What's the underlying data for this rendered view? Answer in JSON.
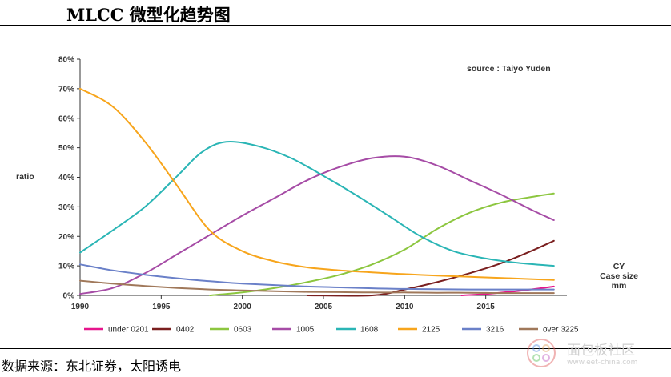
{
  "page": {
    "title": "MLCC 微型化趋势图",
    "source_note": "数据来源：东北证券，太阳诱电",
    "watermark": "面包板社区",
    "watermark_sub": "www.eet-china.com"
  },
  "chart_data": {
    "type": "line",
    "title": "",
    "annotation": "source : Taiyo Yuden",
    "ylabel": "ratio",
    "xlabel_lines": [
      "CY",
      "Case size",
      "mm"
    ],
    "ylim": [
      0,
      80
    ],
    "xlim": [
      1990,
      2020
    ],
    "y_ticks": [
      "0%",
      "10%",
      "20%",
      "30%",
      "40%",
      "50%",
      "60%",
      "70%",
      "80%"
    ],
    "x_ticks": [
      "1990",
      "1995",
      "2000",
      "2005",
      "2010",
      "2015"
    ],
    "grid": false,
    "legend_position": "bottom",
    "series": [
      {
        "name": "under 0201",
        "color": "#e6158c",
        "points": [
          [
            2013.5,
            0
          ],
          [
            2015,
            0.5
          ],
          [
            2017,
            1.5
          ],
          [
            2019.2,
            3
          ]
        ]
      },
      {
        "name": "0402",
        "color": "#7a1f1f",
        "points": [
          [
            2004,
            0
          ],
          [
            2008,
            0
          ],
          [
            2010,
            2
          ],
          [
            2012,
            4.5
          ],
          [
            2014,
            7.5
          ],
          [
            2016,
            11
          ],
          [
            2018,
            15.5
          ],
          [
            2019.2,
            18.5
          ]
        ]
      },
      {
        "name": "0603",
        "color": "#8cc63f",
        "points": [
          [
            1998,
            0
          ],
          [
            2000,
            1
          ],
          [
            2002,
            2.5
          ],
          [
            2004,
            4.5
          ],
          [
            2006,
            7
          ],
          [
            2008,
            10.5
          ],
          [
            2010,
            15.5
          ],
          [
            2012,
            22.5
          ],
          [
            2014,
            28
          ],
          [
            2016,
            31.5
          ],
          [
            2018,
            33.5
          ],
          [
            2019.2,
            34.5
          ]
        ]
      },
      {
        "name": "1005",
        "color": "#a64ca6",
        "points": [
          [
            1990,
            0.5
          ],
          [
            1992,
            2.5
          ],
          [
            1994,
            7.5
          ],
          [
            1996,
            14
          ],
          [
            1998,
            20.5
          ],
          [
            2000,
            27
          ],
          [
            2002,
            33
          ],
          [
            2004,
            39
          ],
          [
            2006,
            43.5
          ],
          [
            2008,
            46.5
          ],
          [
            2010,
            47
          ],
          [
            2012,
            44
          ],
          [
            2014,
            39
          ],
          [
            2016,
            34
          ],
          [
            2018,
            28.5
          ],
          [
            2019.2,
            25.5
          ]
        ]
      },
      {
        "name": "1608",
        "color": "#2ab5b5",
        "points": [
          [
            1990,
            14.5
          ],
          [
            1992,
            22
          ],
          [
            1994,
            30
          ],
          [
            1996,
            40.5
          ],
          [
            1997.5,
            48.5
          ],
          [
            1999,
            52
          ],
          [
            2001,
            50.5
          ],
          [
            2003,
            46.5
          ],
          [
            2005,
            40.5
          ],
          [
            2007,
            34
          ],
          [
            2009,
            27
          ],
          [
            2011,
            20
          ],
          [
            2013,
            15
          ],
          [
            2015,
            12.5
          ],
          [
            2017,
            11
          ],
          [
            2019.2,
            10
          ]
        ]
      },
      {
        "name": "2125",
        "color": "#f7a51c",
        "points": [
          [
            1990,
            70
          ],
          [
            1992,
            64
          ],
          [
            1994,
            52
          ],
          [
            1996,
            37
          ],
          [
            1998,
            22
          ],
          [
            2000,
            15
          ],
          [
            2002,
            11.5
          ],
          [
            2004,
            9.5
          ],
          [
            2006,
            8.5
          ],
          [
            2008,
            7.8
          ],
          [
            2010,
            7.2
          ],
          [
            2012,
            6.7
          ],
          [
            2014,
            6.3
          ],
          [
            2016,
            5.9
          ],
          [
            2019.2,
            5.2
          ]
        ]
      },
      {
        "name": "3216",
        "color": "#6a80c8",
        "points": [
          [
            1990,
            10.5
          ],
          [
            1992,
            8.5
          ],
          [
            1994,
            7
          ],
          [
            1996,
            5.8
          ],
          [
            1998,
            4.8
          ],
          [
            2000,
            4
          ],
          [
            2002,
            3.5
          ],
          [
            2004,
            3
          ],
          [
            2006,
            2.7
          ],
          [
            2008,
            2.4
          ],
          [
            2010,
            2.2
          ],
          [
            2012,
            2.1
          ],
          [
            2014,
            2
          ],
          [
            2016,
            2
          ],
          [
            2019.2,
            2
          ]
        ]
      },
      {
        "name": "over 3225",
        "color": "#a0785a",
        "points": [
          [
            1990,
            5
          ],
          [
            1992,
            4
          ],
          [
            1994,
            3.2
          ],
          [
            1996,
            2.5
          ],
          [
            1998,
            2
          ],
          [
            2000,
            1.7
          ],
          [
            2002,
            1.4
          ],
          [
            2004,
            1.2
          ],
          [
            2006,
            1.1
          ],
          [
            2008,
            1
          ],
          [
            2010,
            1
          ],
          [
            2012,
            0.9
          ],
          [
            2014,
            0.9
          ],
          [
            2016,
            0.8
          ],
          [
            2019.2,
            0.8
          ]
        ]
      }
    ]
  }
}
